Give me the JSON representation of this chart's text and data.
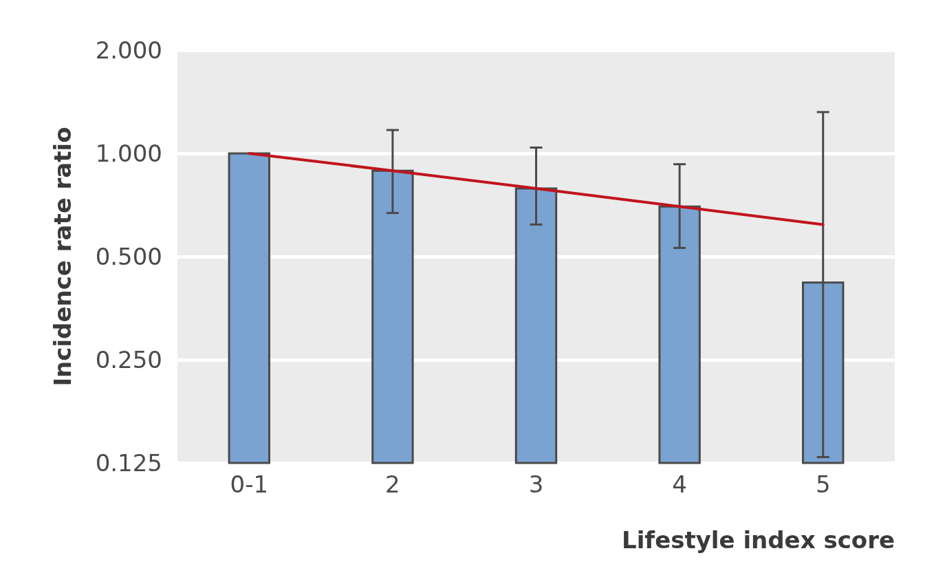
{
  "chart_data": {
    "type": "bar",
    "xlabel": "Lifestyle index score",
    "ylabel": "Incidence rate ratio",
    "categories": [
      "0-1",
      "2",
      "3",
      "4",
      "5"
    ],
    "series": [
      {
        "color": "#7aa3d1",
        "values": [
          1.0,
          0.89,
          0.79,
          0.7,
          0.42
        ],
        "errors": [
          null,
          [
            0.67,
            1.17
          ],
          [
            0.62,
            1.04
          ],
          [
            0.53,
            0.93
          ],
          [
            0.13,
            1.32
          ]
        ]
      },
      {
        "type": "line",
        "color": "#c0141c",
        "values": [
          1.0,
          0.89,
          0.79,
          0.7,
          0.62
        ]
      }
    ],
    "log": "y",
    "ylim": [
      0.125,
      2
    ],
    "yticks": [
      {
        "value": 0.125,
        "label": "0.125"
      },
      {
        "value": 0.25,
        "label": "0.250"
      },
      {
        "value": 0.5,
        "label": "0.500"
      },
      {
        "value": 1,
        "label": "1.000"
      },
      {
        "value": 2,
        "label": "2.000"
      }
    ],
    "grid": "y",
    "marker": "none"
  }
}
